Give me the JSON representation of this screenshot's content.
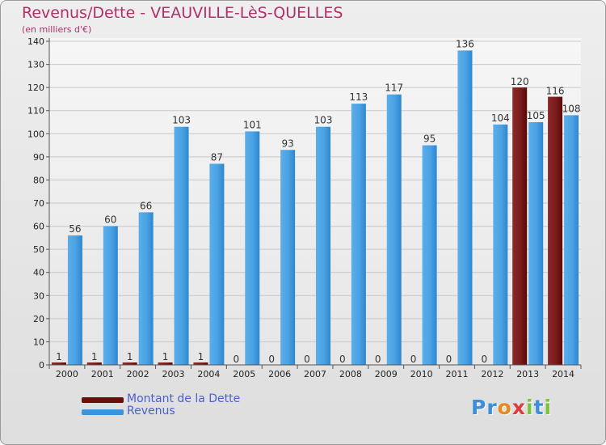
{
  "header": {
    "title": "Revenus/Dette - VEAUVILLE-LèS-QUELLES",
    "subtitle": "(en milliers d'€)"
  },
  "legend": {
    "items": [
      {
        "label": "Montant de la Dette",
        "color": "#6b0e0e"
      },
      {
        "label": "Revenus",
        "color": "#3b95dc"
      }
    ]
  },
  "logo": {
    "letters": [
      "P",
      "r",
      "o",
      "x",
      "i",
      "t",
      "i"
    ],
    "colors": [
      "#3a8fd8",
      "#3a8fd8",
      "#e58a1f",
      "#e23a3a",
      "#7cc23a",
      "#3a8fd8",
      "#7cc23a"
    ]
  },
  "chart_data": {
    "type": "bar",
    "title": "Revenus/Dette - VEAUVILLE-LèS-QUELLES",
    "ylabel": "(en milliers d'€)",
    "xlabel": "",
    "categories": [
      "2000",
      "2001",
      "2002",
      "2003",
      "2004",
      "2005",
      "2006",
      "2007",
      "2008",
      "2009",
      "2010",
      "2011",
      "2012",
      "2013",
      "2014"
    ],
    "ylim": [
      0,
      140
    ],
    "yticks": [
      0,
      10,
      20,
      30,
      40,
      50,
      60,
      70,
      80,
      90,
      100,
      110,
      120,
      130,
      140
    ],
    "grid": true,
    "series": [
      {
        "name": "Montant de la Dette",
        "color": "#6b0e0e",
        "highlight": "#8a2a2a",
        "values": [
          1,
          1,
          1,
          1,
          1,
          0,
          0,
          0,
          0,
          0,
          0,
          0,
          0,
          120,
          116
        ],
        "labels": [
          "1",
          "1",
          "1",
          "1",
          "1",
          "0",
          "0",
          "0",
          "0",
          "0",
          "0",
          "0",
          "0",
          "120",
          "116"
        ]
      },
      {
        "name": "Revenus",
        "color": "#2e86cf",
        "highlight": "#5aaeea",
        "values": [
          56,
          60,
          66,
          103,
          87,
          101,
          93,
          103,
          113,
          117,
          95,
          136,
          104,
          105,
          108
        ],
        "labels": [
          "56",
          "60",
          "66",
          "103",
          "87",
          "101",
          "93",
          "103",
          "113",
          "117",
          "95",
          "136",
          "104",
          "105",
          "108"
        ]
      }
    ]
  }
}
